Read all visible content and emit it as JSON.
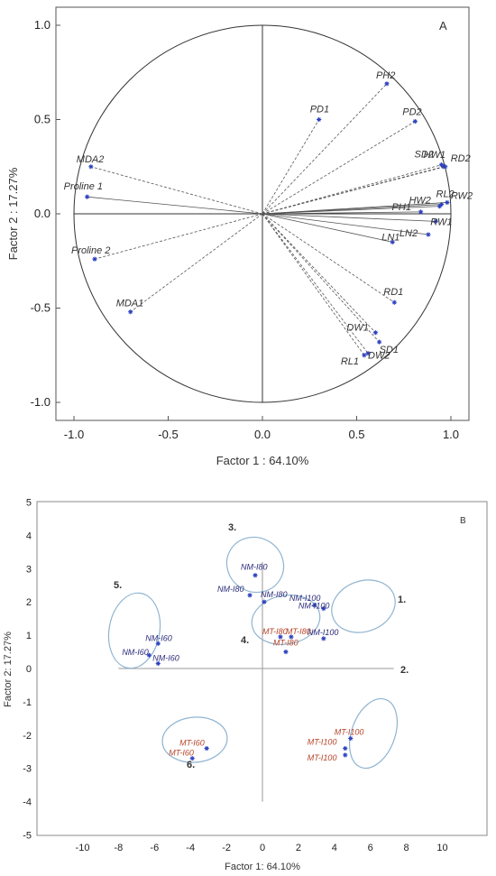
{
  "chart_data": [
    {
      "type": "scatter",
      "panel": "A",
      "xlabel": "Factor 1 : 64.10%",
      "ylabel": "Factor 2 : 17.27%",
      "xlim": [
        -1.1,
        1.1
      ],
      "ylim": [
        -1.1,
        1.1
      ],
      "x_ticks": [
        "-1.0",
        "-0.5",
        "0.0",
        "0.5",
        "1.0"
      ],
      "y_ticks": [
        "1.0",
        "0.5",
        "0.0",
        "-0.5",
        "-1.0"
      ],
      "unit_circle": true,
      "vectors": [
        {
          "label": "PH2",
          "x": 0.66,
          "y": 0.69
        },
        {
          "label": "PD1",
          "x": 0.3,
          "y": 0.5
        },
        {
          "label": "PD2",
          "x": 0.81,
          "y": 0.49
        },
        {
          "label": "SD2",
          "x": 0.95,
          "y": 0.26
        },
        {
          "label": "HW1",
          "x": 0.96,
          "y": 0.25
        },
        {
          "label": "RD2",
          "x": 0.97,
          "y": 0.25
        },
        {
          "label": "RL2",
          "x": 0.95,
          "y": 0.05
        },
        {
          "label": "RW2",
          "x": 0.98,
          "y": 0.06
        },
        {
          "label": "HW2",
          "x": 0.94,
          "y": 0.04
        },
        {
          "label": "PH1",
          "x": 0.84,
          "y": 0.01
        },
        {
          "label": "RW1",
          "x": 0.92,
          "y": -0.04
        },
        {
          "label": "LN2",
          "x": 0.88,
          "y": -0.11
        },
        {
          "label": "LN1",
          "x": 0.69,
          "y": -0.15
        },
        {
          "label": "RD1",
          "x": 0.7,
          "y": -0.47
        },
        {
          "label": "DW1",
          "x": 0.6,
          "y": -0.63
        },
        {
          "label": "SD1",
          "x": 0.62,
          "y": -0.68
        },
        {
          "label": "RL1",
          "x": 0.54,
          "y": -0.75
        },
        {
          "label": "DW2",
          "x": 0.56,
          "y": -0.74
        },
        {
          "label": "MDA2",
          "x": -0.91,
          "y": 0.25
        },
        {
          "label": "Proline 1",
          "x": -0.93,
          "y": 0.09
        },
        {
          "label": "Proline 2",
          "x": -0.89,
          "y": -0.24
        },
        {
          "label": "MDA1",
          "x": -0.7,
          "y": -0.52
        }
      ]
    },
    {
      "type": "scatter",
      "panel": "B",
      "xlabel": "Factor 1: 64.10%",
      "ylabel": "Factor 2: 17.27%",
      "xlim": [
        -10,
        10
      ],
      "ylim": [
        -5,
        5
      ],
      "x_ticks": [
        "-10",
        "-8",
        "-6",
        "-4",
        "-2",
        "0",
        "2",
        "4",
        "6",
        "8",
        "10"
      ],
      "y_ticks": [
        "5",
        "4",
        "3",
        "2",
        "1",
        "0",
        "-1",
        "-2",
        "-3",
        "-4",
        "-5"
      ],
      "points": [
        {
          "label": "NM-I80",
          "x": -0.4,
          "y": 2.8,
          "group": "NM"
        },
        {
          "label": "NM-I80",
          "x": -0.7,
          "y": 2.2,
          "group": "NM"
        },
        {
          "label": "NM-I80",
          "x": 0.1,
          "y": 2.0,
          "group": "NM"
        },
        {
          "label": "NM-I100",
          "x": 2.9,
          "y": 1.9,
          "group": "NM"
        },
        {
          "label": "NM-I100",
          "x": 3.4,
          "y": 1.8,
          "group": "NM"
        },
        {
          "label": "NM-I100",
          "x": 3.4,
          "y": 0.9,
          "group": "NM"
        },
        {
          "label": "MT-I80",
          "x": 1.0,
          "y": 0.95,
          "group": "MT"
        },
        {
          "label": "MT-I80",
          "x": 1.6,
          "y": 0.95,
          "group": "MT"
        },
        {
          "label": "MT-I80",
          "x": 1.3,
          "y": 0.5,
          "group": "MT"
        },
        {
          "label": "NM-I60",
          "x": -5.8,
          "y": 0.75,
          "group": "NM"
        },
        {
          "label": "NM-I60",
          "x": -6.3,
          "y": 0.4,
          "group": "NM"
        },
        {
          "label": "NM-I60",
          "x": -5.8,
          "y": 0.15,
          "group": "NM"
        },
        {
          "label": "MT-I60",
          "x": -3.1,
          "y": -2.4,
          "group": "MT"
        },
        {
          "label": "MT-I60",
          "x": -3.9,
          "y": -2.7,
          "group": "MT"
        },
        {
          "label": "MT-I100",
          "x": 4.9,
          "y": -2.1,
          "group": "MT"
        },
        {
          "label": "MT-I100",
          "x": 4.6,
          "y": -2.4,
          "group": "MT"
        },
        {
          "label": "MT-I100",
          "x": 4.6,
          "y": -2.6,
          "group": "MT"
        }
      ],
      "clusters": [
        {
          "label": "1.",
          "cx": 4.1,
          "cy": 1.85
        },
        {
          "label": "2.",
          "cx": 4.9,
          "cy": -2.0
        },
        {
          "label": "3.",
          "cx": -0.3,
          "cy": 2.7
        },
        {
          "label": "4.",
          "cx": 1.3,
          "cy": 1.1
        },
        {
          "label": "5.",
          "cx": -5.6,
          "cy": 0.75
        },
        {
          "label": "6.",
          "cx": -3.1,
          "cy": -2.1
        }
      ],
      "colors": {
        "NM": "#2b2b7a",
        "MT": "#b5452a",
        "ellipse": "#8fb4d0"
      }
    }
  ]
}
